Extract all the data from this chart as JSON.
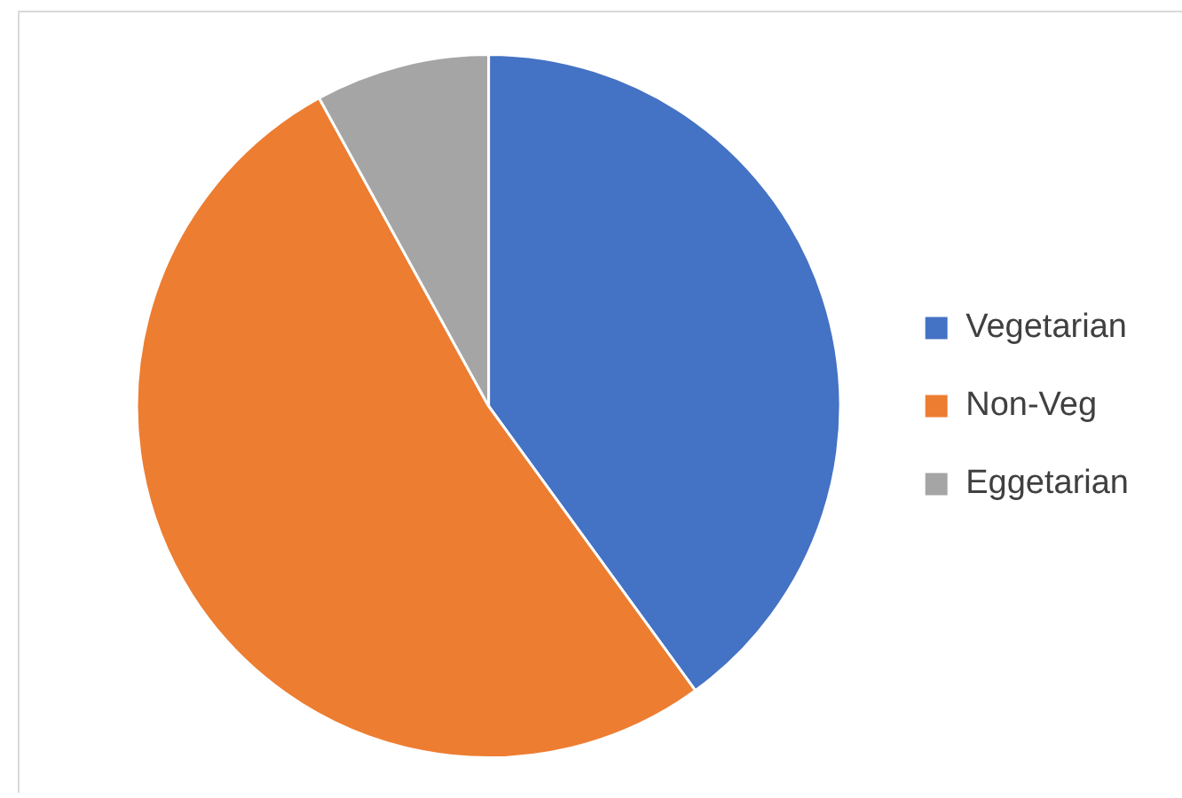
{
  "chart_data": {
    "type": "pie",
    "categories": [
      "Vegetarian",
      "Non-Veg",
      "Eggetarian"
    ],
    "values": [
      40,
      52,
      8
    ],
    "colors": [
      "#4472c4",
      "#ed7d31",
      "#a5a5a5"
    ],
    "legend": "right"
  }
}
